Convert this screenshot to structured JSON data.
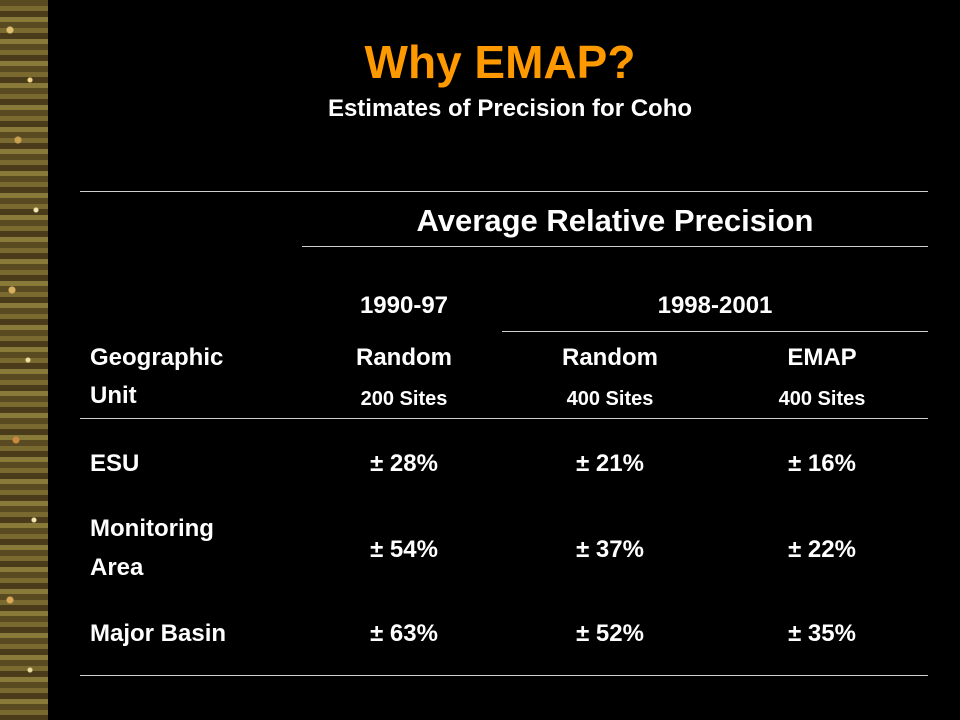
{
  "slide": {
    "title": "Why EMAP?",
    "subtitle": "Estimates of Precision for Coho"
  },
  "table": {
    "super_header": "Average Relative Precision",
    "period_headers": [
      "1990-97",
      "1998-2001"
    ],
    "row_header_label_line1": "Geographic",
    "row_header_label_line2": "Unit",
    "columns": [
      {
        "method": "Random",
        "sites": "200 Sites"
      },
      {
        "method": "Random",
        "sites": "400 Sites"
      },
      {
        "method": "EMAP",
        "sites": "400 Sites"
      }
    ],
    "rows": [
      {
        "unit_line1": "ESU",
        "unit_line2": "",
        "values": [
          "± 28%",
          "± 21%",
          "± 16%"
        ]
      },
      {
        "unit_line1": "Monitoring",
        "unit_line2": "Area",
        "values": [
          "± 54%",
          "± 37%",
          "± 22%"
        ]
      },
      {
        "unit_line1": "Major Basin",
        "unit_line2": "",
        "values": [
          "± 63%",
          "± 52%",
          "± 35%"
        ]
      }
    ]
  },
  "colors": {
    "background": "#000000",
    "title": "#ff9900",
    "text": "#ffffff",
    "rule": "#cfcfcf"
  }
}
